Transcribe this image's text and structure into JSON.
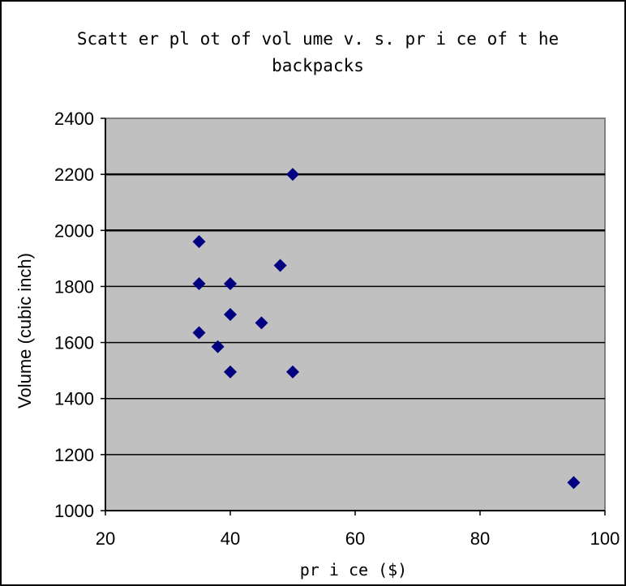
{
  "chart_data": {
    "type": "scatter",
    "title": "Scatt er pl ot  of  vol ume v. s.  pr i ce of  t he\nbackpacks",
    "xlabel": "pr i ce  ($)",
    "ylabel": "Volume (cubic inch)",
    "xlim": [
      20,
      100
    ],
    "ylim": [
      1000,
      2400
    ],
    "xticks": [
      "20",
      "40",
      "60",
      "80",
      "100"
    ],
    "yticks": [
      "1000",
      "1200",
      "1400",
      "1600",
      "1800",
      "2000",
      "2200",
      "2400"
    ],
    "grid": "horizontal",
    "plot_background": "#c0c0c0",
    "marker": "diamond",
    "marker_color": "#000080",
    "series": [
      {
        "points": [
          {
            "x": 50,
            "y": 2200
          },
          {
            "x": 35,
            "y": 1960
          },
          {
            "x": 48,
            "y": 1875
          },
          {
            "x": 35,
            "y": 1810
          },
          {
            "x": 40,
            "y": 1810
          },
          {
            "x": 40,
            "y": 1700
          },
          {
            "x": 45,
            "y": 1670
          },
          {
            "x": 35,
            "y": 1635
          },
          {
            "x": 38,
            "y": 1585
          },
          {
            "x": 40,
            "y": 1495
          },
          {
            "x": 50,
            "y": 1495
          },
          {
            "x": 95,
            "y": 1100
          }
        ]
      }
    ]
  }
}
